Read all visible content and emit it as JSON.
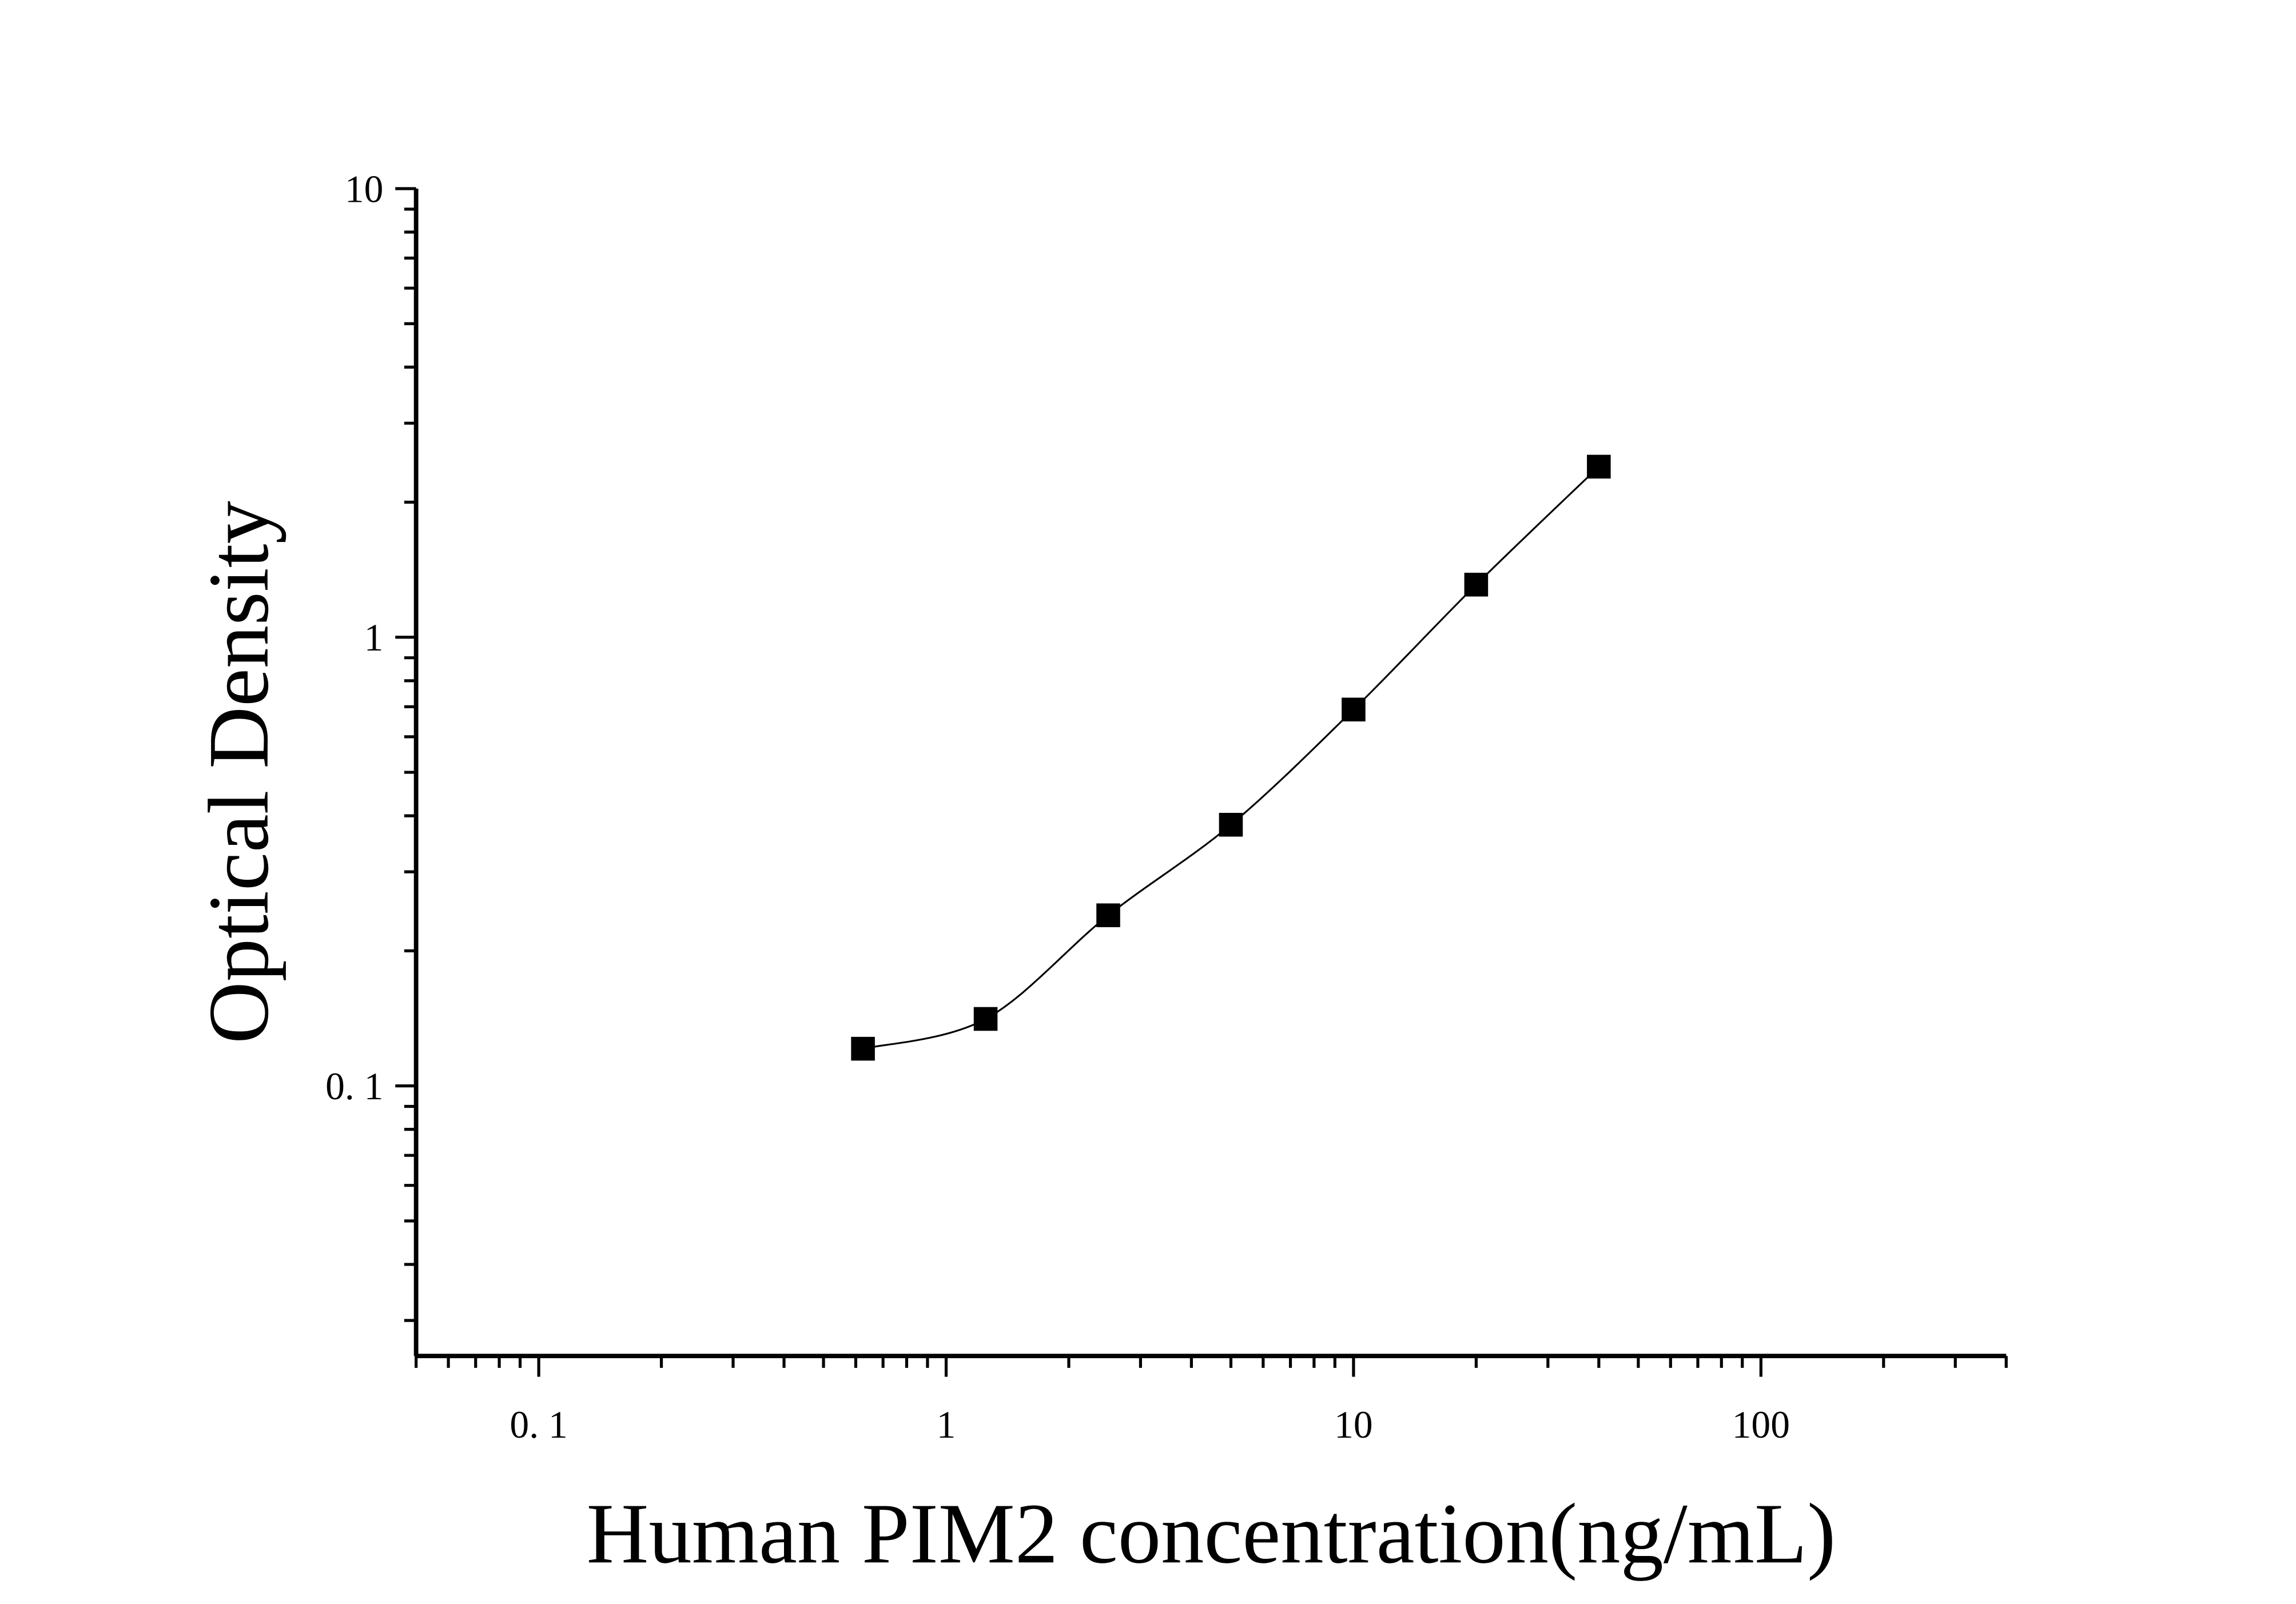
{
  "chart_data": {
    "type": "scatter",
    "title": "",
    "xlabel": "Human PIM2 concentration(ng/mL)",
    "ylabel": "Optical Density",
    "xscale": "log",
    "yscale": "log",
    "xlim": [
      0.05,
      400
    ],
    "ylim": [
      0.025,
      10
    ],
    "xticks": [
      {
        "value": 0.1,
        "label": "0. 1"
      },
      {
        "value": 1,
        "label": "1"
      },
      {
        "value": 10,
        "label": "10"
      },
      {
        "value": 100,
        "label": "100"
      }
    ],
    "yticks": [
      {
        "value": 0.1,
        "label": "0. 1"
      },
      {
        "value": 1,
        "label": "1"
      },
      {
        "value": 10,
        "label": "10"
      }
    ],
    "grid": false,
    "marker": "square",
    "color": "#000000",
    "fit_curve": true,
    "x": [
      0.625,
      1.25,
      2.5,
      5,
      10,
      20,
      40
    ],
    "y": [
      0.121,
      0.141,
      0.24,
      0.382,
      0.69,
      1.31,
      2.4
    ]
  }
}
